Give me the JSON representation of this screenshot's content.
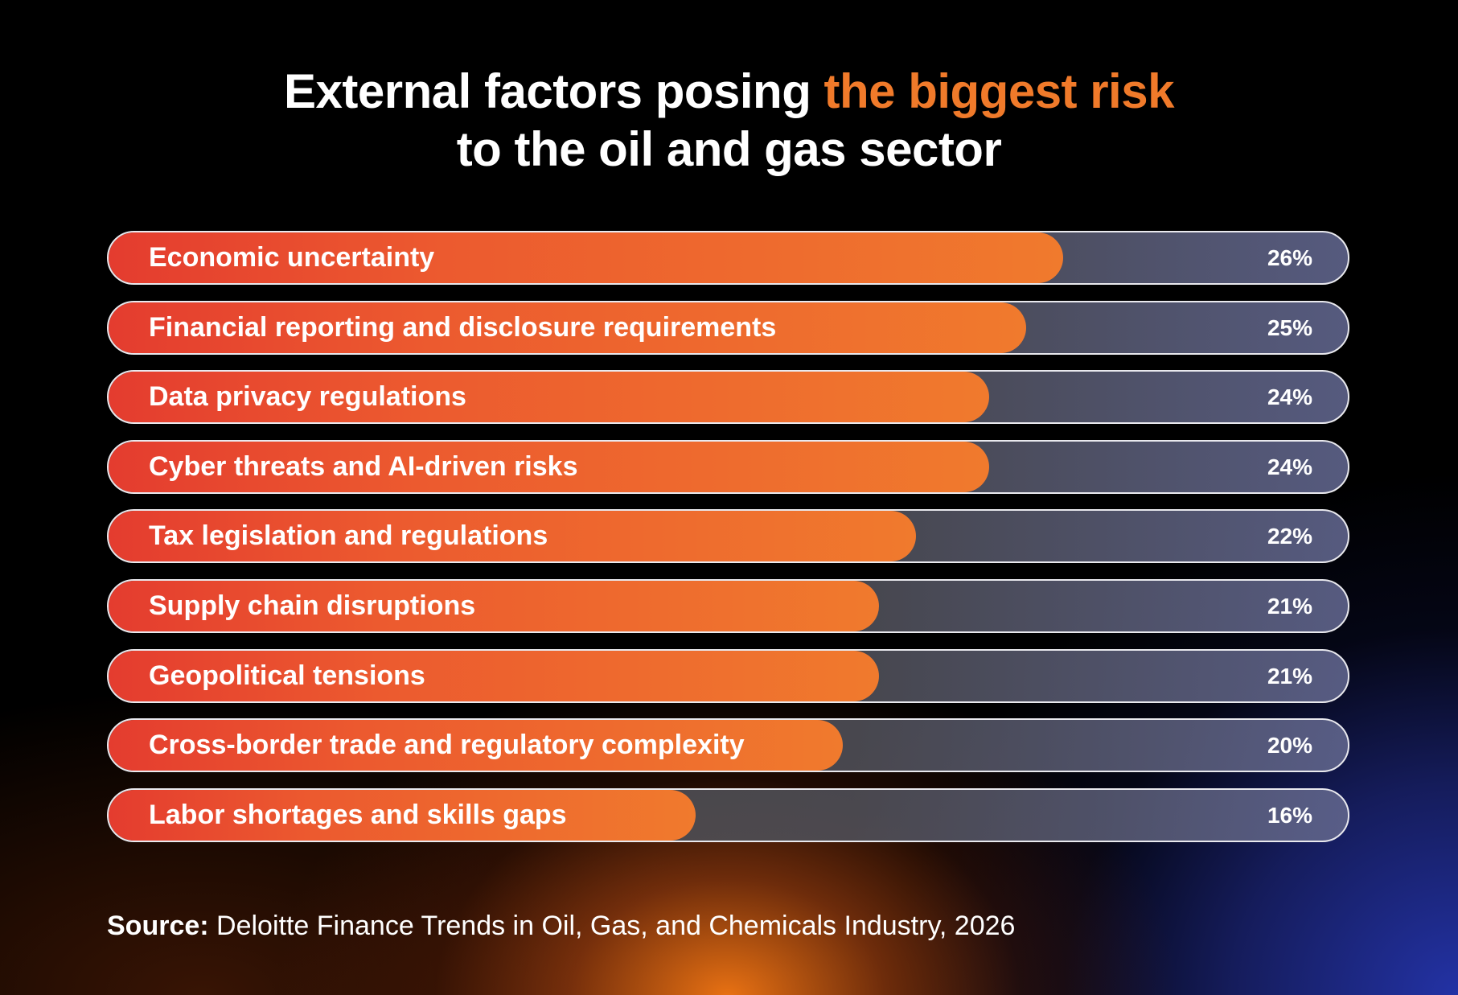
{
  "title": {
    "part1": "External factors posing ",
    "highlight": "the biggest risk",
    "line2": "to the oil and gas sector"
  },
  "colors": {
    "accent": "#f07a2a",
    "bar_start": "#e43c2f",
    "bar_end": "#f07a2d",
    "track": "#4a4a4a"
  },
  "chart_data": {
    "type": "bar",
    "orientation": "horizontal",
    "title": "External factors posing the biggest risk to the oil and gas sector",
    "categories": [
      "Economic uncertainty",
      "Financial reporting and disclosure requirements",
      "Data privacy regulations",
      "Cyber threats and AI-driven risks",
      "Tax legislation and regulations",
      "Supply chain disruptions",
      "Geopolitical tensions",
      "Cross-border trade and regulatory complexity",
      "Labor shortages and skills gaps"
    ],
    "values": [
      26,
      25,
      24,
      24,
      22,
      21,
      21,
      20,
      16
    ],
    "value_labels": [
      "26%",
      "25%",
      "24%",
      "24%",
      "22%",
      "21%",
      "21%",
      "20%",
      "16%"
    ],
    "unit": "%",
    "grid": false
  },
  "source": {
    "label": "Source:",
    "text": " Deloitte Finance Trends in Oil, Gas, and Chemicals Industry, 2026"
  }
}
